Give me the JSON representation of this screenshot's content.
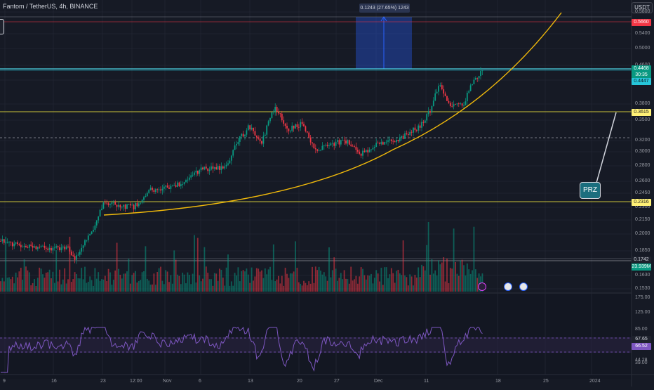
{
  "header": {
    "title": "Fantom / TetherUS, 4h, BINANCE",
    "currency": "USDT"
  },
  "price_axis": [
    "0.5800",
    "0.5400",
    "0.5000",
    "0.4600",
    "0.4200",
    "0.3800",
    "0.3500",
    "0.3200",
    "0.3000",
    "0.2800",
    "0.2600",
    "0.2450",
    "0.2300",
    "0.2150",
    "0.2000",
    "0.1850",
    "0.1630",
    "0.1530"
  ],
  "price_tags": [
    {
      "value": "0.5660",
      "color": "#f23645",
      "text": "#ffffff"
    },
    {
      "value": "0.4468",
      "color": "#089981",
      "text": "#ffffff"
    },
    {
      "value": "30:35",
      "color": "#089981",
      "text": "#ffffff"
    },
    {
      "value": "0.4447",
      "color": "#26c6da",
      "text": "#0b1c20"
    },
    {
      "value": "0.3615",
      "color": "#fff176",
      "text": "#1e1e1e"
    },
    {
      "value": "0.2316",
      "color": "#fff176",
      "text": "#1e1e1e"
    },
    {
      "value": "0.1742",
      "color": "#1e222d",
      "text": "#d1d4dc"
    },
    {
      "value": "23.939M",
      "color": "#089981",
      "text": "#ffffff"
    }
  ],
  "rsi_axis": [
    "175.00",
    "125.00",
    "85.00",
    "44.28",
    "39.00"
  ],
  "rsi_tags": [
    {
      "value": "67.65",
      "color": "#1e222d",
      "text": "#d1d4dc"
    },
    {
      "value": "66.52",
      "color": "#7e57c2",
      "text": "#ffffff"
    }
  ],
  "time_axis": [
    "9",
    "16",
    "23",
    "12:00",
    "Nov",
    "6",
    "13",
    "20",
    "27",
    "Dec",
    "11",
    "18",
    "25",
    "2024"
  ],
  "measure": {
    "label": "0.1243 (27.65%) 1243"
  },
  "annotation": {
    "label": "PRZ"
  },
  "colors": {
    "up": "#089981",
    "down": "#f23645",
    "curve": "#f0b90b",
    "hline_yellow": "#c9c239",
    "hline_cyan": "#4dd0e1",
    "rsi": "#7e57c2"
  }
}
